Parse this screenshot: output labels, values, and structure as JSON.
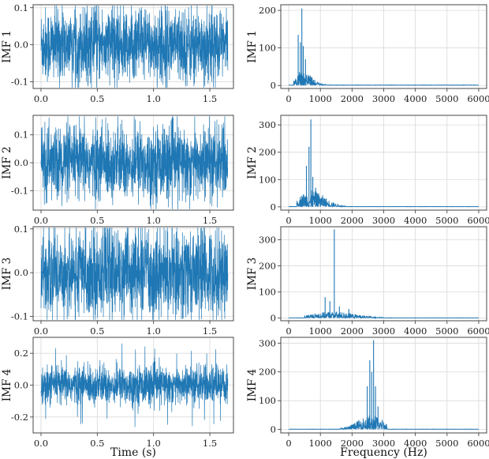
{
  "chart_data": [
    {
      "type": "line",
      "ylabel": "IMF 1",
      "xlabel": "",
      "domain": "time",
      "x_range": [
        0,
        1.66
      ],
      "xlim": [
        -0.07,
        1.71
      ],
      "ylim": [
        -0.118,
        0.108
      ],
      "xticks": [
        0.0,
        0.5,
        1.0,
        1.5
      ],
      "xtick_labels": [
        "0.0",
        "0.5",
        "1.0",
        "1.5"
      ],
      "yticks": [
        -0.1,
        0.0,
        0.1
      ],
      "ytick_labels": [
        "-0.1",
        "0.0",
        "0.1"
      ],
      "amplitude": 0.05,
      "peak": 0.1,
      "grid": true,
      "color": "#1f77b4"
    },
    {
      "type": "line",
      "ylabel": "IMF 1",
      "xlabel": "",
      "domain": "frequency",
      "xlim": [
        -250,
        6250
      ],
      "ylim": [
        -8,
        215
      ],
      "xticks": [
        0,
        1000,
        2000,
        3000,
        4000,
        5000,
        6000
      ],
      "xtick_labels": [
        "0",
        "1000",
        "2000",
        "3000",
        "4000",
        "5000",
        "6000"
      ],
      "yticks": [
        0,
        100,
        200
      ],
      "ytick_labels": [
        "0",
        "100",
        "200"
      ],
      "band": [
        150,
        1200
      ],
      "center": 420,
      "typical_peak": 40,
      "spikes": [
        [
          300,
          135
        ],
        [
          370,
          115
        ],
        [
          415,
          205
        ],
        [
          460,
          105
        ],
        [
          530,
          70
        ],
        [
          820,
          15
        ]
      ],
      "grid": true,
      "color": "#1f77b4"
    },
    {
      "type": "line",
      "ylabel": "IMF 2",
      "xlabel": "",
      "domain": "time",
      "x_range": [
        0,
        1.66
      ],
      "xlim": [
        -0.07,
        1.71
      ],
      "ylim": [
        -0.17,
        0.17
      ],
      "xticks": [
        0.0,
        0.5,
        1.0,
        1.5
      ],
      "xtick_labels": [
        "0.0",
        "0.5",
        "1.0",
        "1.5"
      ],
      "yticks": [
        -0.1,
        0.0,
        0.1
      ],
      "ytick_labels": [
        "-0.1",
        "0.0",
        "0.1"
      ],
      "amplitude": 0.065,
      "peak": 0.16,
      "grid": true,
      "color": "#1f77b4"
    },
    {
      "type": "line",
      "ylabel": "IMF 2",
      "xlabel": "",
      "domain": "frequency",
      "xlim": [
        -250,
        6250
      ],
      "ylim": [
        -12,
        335
      ],
      "xticks": [
        0,
        1000,
        2000,
        3000,
        4000,
        5000,
        6000
      ],
      "xtick_labels": [
        "0",
        "1000",
        "2000",
        "3000",
        "4000",
        "5000",
        "6000"
      ],
      "yticks": [
        0,
        100,
        200,
        300
      ],
      "ytick_labels": [
        "0",
        "100",
        "200",
        "300"
      ],
      "band": [
        250,
        1800
      ],
      "center": 720,
      "typical_peak": 60,
      "spikes": [
        [
          560,
          150
        ],
        [
          640,
          220
        ],
        [
          700,
          320
        ],
        [
          760,
          110
        ],
        [
          850,
          70
        ],
        [
          1000,
          30
        ]
      ],
      "grid": true,
      "color": "#1f77b4"
    },
    {
      "type": "line",
      "ylabel": "IMF 3",
      "xlabel": "",
      "domain": "time",
      "x_range": [
        0,
        1.66
      ],
      "xlim": [
        -0.07,
        1.71
      ],
      "ylim": [
        -0.11,
        0.105
      ],
      "xticks": [
        0.0,
        0.5,
        1.0,
        1.5
      ],
      "xtick_labels": [
        "0.0",
        "0.5",
        "1.0",
        "1.5"
      ],
      "yticks": [
        -0.1,
        0.0,
        0.1
      ],
      "ytick_labels": [
        "-0.1",
        "0.0",
        "0.1"
      ],
      "amplitude": 0.05,
      "peak": 0.1,
      "grid": true,
      "color": "#1f77b4"
    },
    {
      "type": "line",
      "ylabel": "IMF 3",
      "xlabel": "",
      "domain": "frequency",
      "xlim": [
        -250,
        6250
      ],
      "ylim": [
        -10,
        350
      ],
      "xticks": [
        0,
        1000,
        2000,
        3000,
        4000,
        5000,
        6000
      ],
      "xtick_labels": [
        "0",
        "1000",
        "2000",
        "3000",
        "4000",
        "5000",
        "6000"
      ],
      "yticks": [
        0,
        100,
        200,
        300
      ],
      "ytick_labels": [
        "0",
        "100",
        "200",
        "300"
      ],
      "band": [
        500,
        3000
      ],
      "center": 1400,
      "typical_peak": 25,
      "spikes": [
        [
          1150,
          80
        ],
        [
          1300,
          65
        ],
        [
          1440,
          340
        ],
        [
          1600,
          45
        ],
        [
          1900,
          35
        ]
      ],
      "grid": true,
      "color": "#1f77b4"
    },
    {
      "type": "line",
      "ylabel": "IMF 4",
      "xlabel": "Time (s)",
      "domain": "time",
      "x_range": [
        0,
        1.66
      ],
      "xlim": [
        -0.07,
        1.71
      ],
      "ylim": [
        -0.3,
        0.3
      ],
      "xticks": [
        0.0,
        0.5,
        1.0,
        1.5
      ],
      "xtick_labels": [
        "0.0",
        "0.5",
        "1.0",
        "1.5"
      ],
      "yticks": [
        -0.2,
        0.0,
        0.2
      ],
      "ytick_labels": [
        "-0.2",
        "0.0",
        "0.2"
      ],
      "amplitude": 0.06,
      "peak": 0.28,
      "grid": true,
      "color": "#1f77b4"
    },
    {
      "type": "line",
      "ylabel": "IMF 4",
      "xlabel": "Frequency (Hz)",
      "domain": "frequency",
      "xlim": [
        -250,
        6250
      ],
      "ylim": [
        -12,
        320
      ],
      "xticks": [
        0,
        1000,
        2000,
        3000,
        4000,
        5000,
        6000
      ],
      "xtick_labels": [
        "0",
        "1000",
        "2000",
        "3000",
        "4000",
        "5000",
        "6000"
      ],
      "yticks": [
        0,
        100,
        200,
        300
      ],
      "ytick_labels": [
        "0",
        "100",
        "200",
        "300"
      ],
      "band": [
        1600,
        3100
      ],
      "center": 2600,
      "typical_peak": 50,
      "spikes": [
        [
          2480,
          150
        ],
        [
          2560,
          240
        ],
        [
          2620,
          200
        ],
        [
          2680,
          310
        ],
        [
          2740,
          150
        ],
        [
          2820,
          80
        ]
      ],
      "grid": true,
      "color": "#1f77b4"
    }
  ]
}
